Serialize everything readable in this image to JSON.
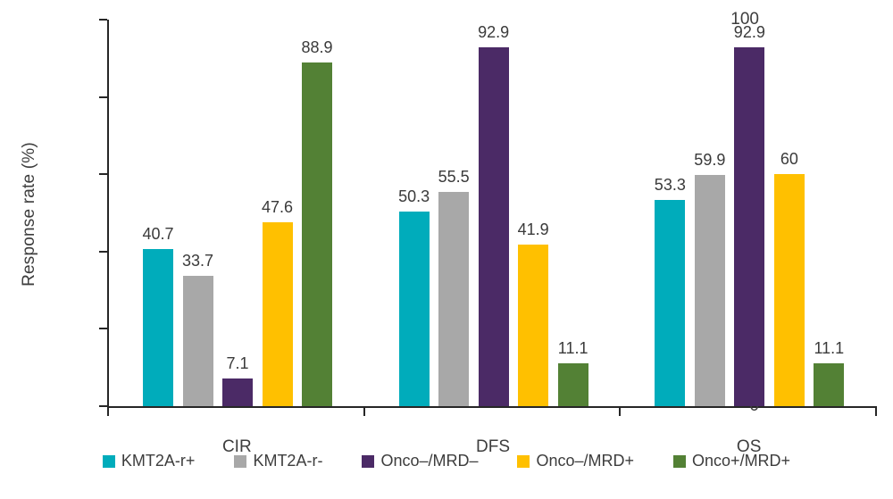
{
  "chart_data": {
    "type": "bar",
    "title": "",
    "xlabel": "",
    "ylabel": "Response rate (%)",
    "ylim": [
      0,
      100
    ],
    "yticks": [
      0,
      20,
      40,
      60,
      80,
      100
    ],
    "grid": false,
    "legend_position": "bottom",
    "categories": [
      "CIR",
      "DFS",
      "OS"
    ],
    "series": [
      {
        "name": "KMT2A-r+",
        "color": "#00ACBB",
        "values": [
          40.7,
          50.3,
          53.3
        ]
      },
      {
        "name": "KMT2A-r-",
        "color": "#A8A8A8",
        "values": [
          33.7,
          55.5,
          59.9
        ]
      },
      {
        "name": "Onco–/MRD–",
        "color": "#4B2A66",
        "values": [
          7.1,
          92.9,
          92.9
        ]
      },
      {
        "name": "Onco–/MRD+",
        "color": "#FFC000",
        "values": [
          47.6,
          41.9,
          60
        ]
      },
      {
        "name": "Onco+/MRD+",
        "color": "#538135",
        "values": [
          88.9,
          11.1,
          11.1
        ]
      }
    ],
    "value_labels": [
      [
        "40.7",
        "50.3",
        "53.3"
      ],
      [
        "33.7",
        "55.5",
        "59.9"
      ],
      [
        "7.1",
        "92.9",
        "92.9"
      ],
      [
        "47.6",
        "41.9",
        "60"
      ],
      [
        "88.9",
        "11.1",
        "11.1"
      ]
    ],
    "axis_color": "#262626",
    "text_color": "#3d3d3d"
  }
}
